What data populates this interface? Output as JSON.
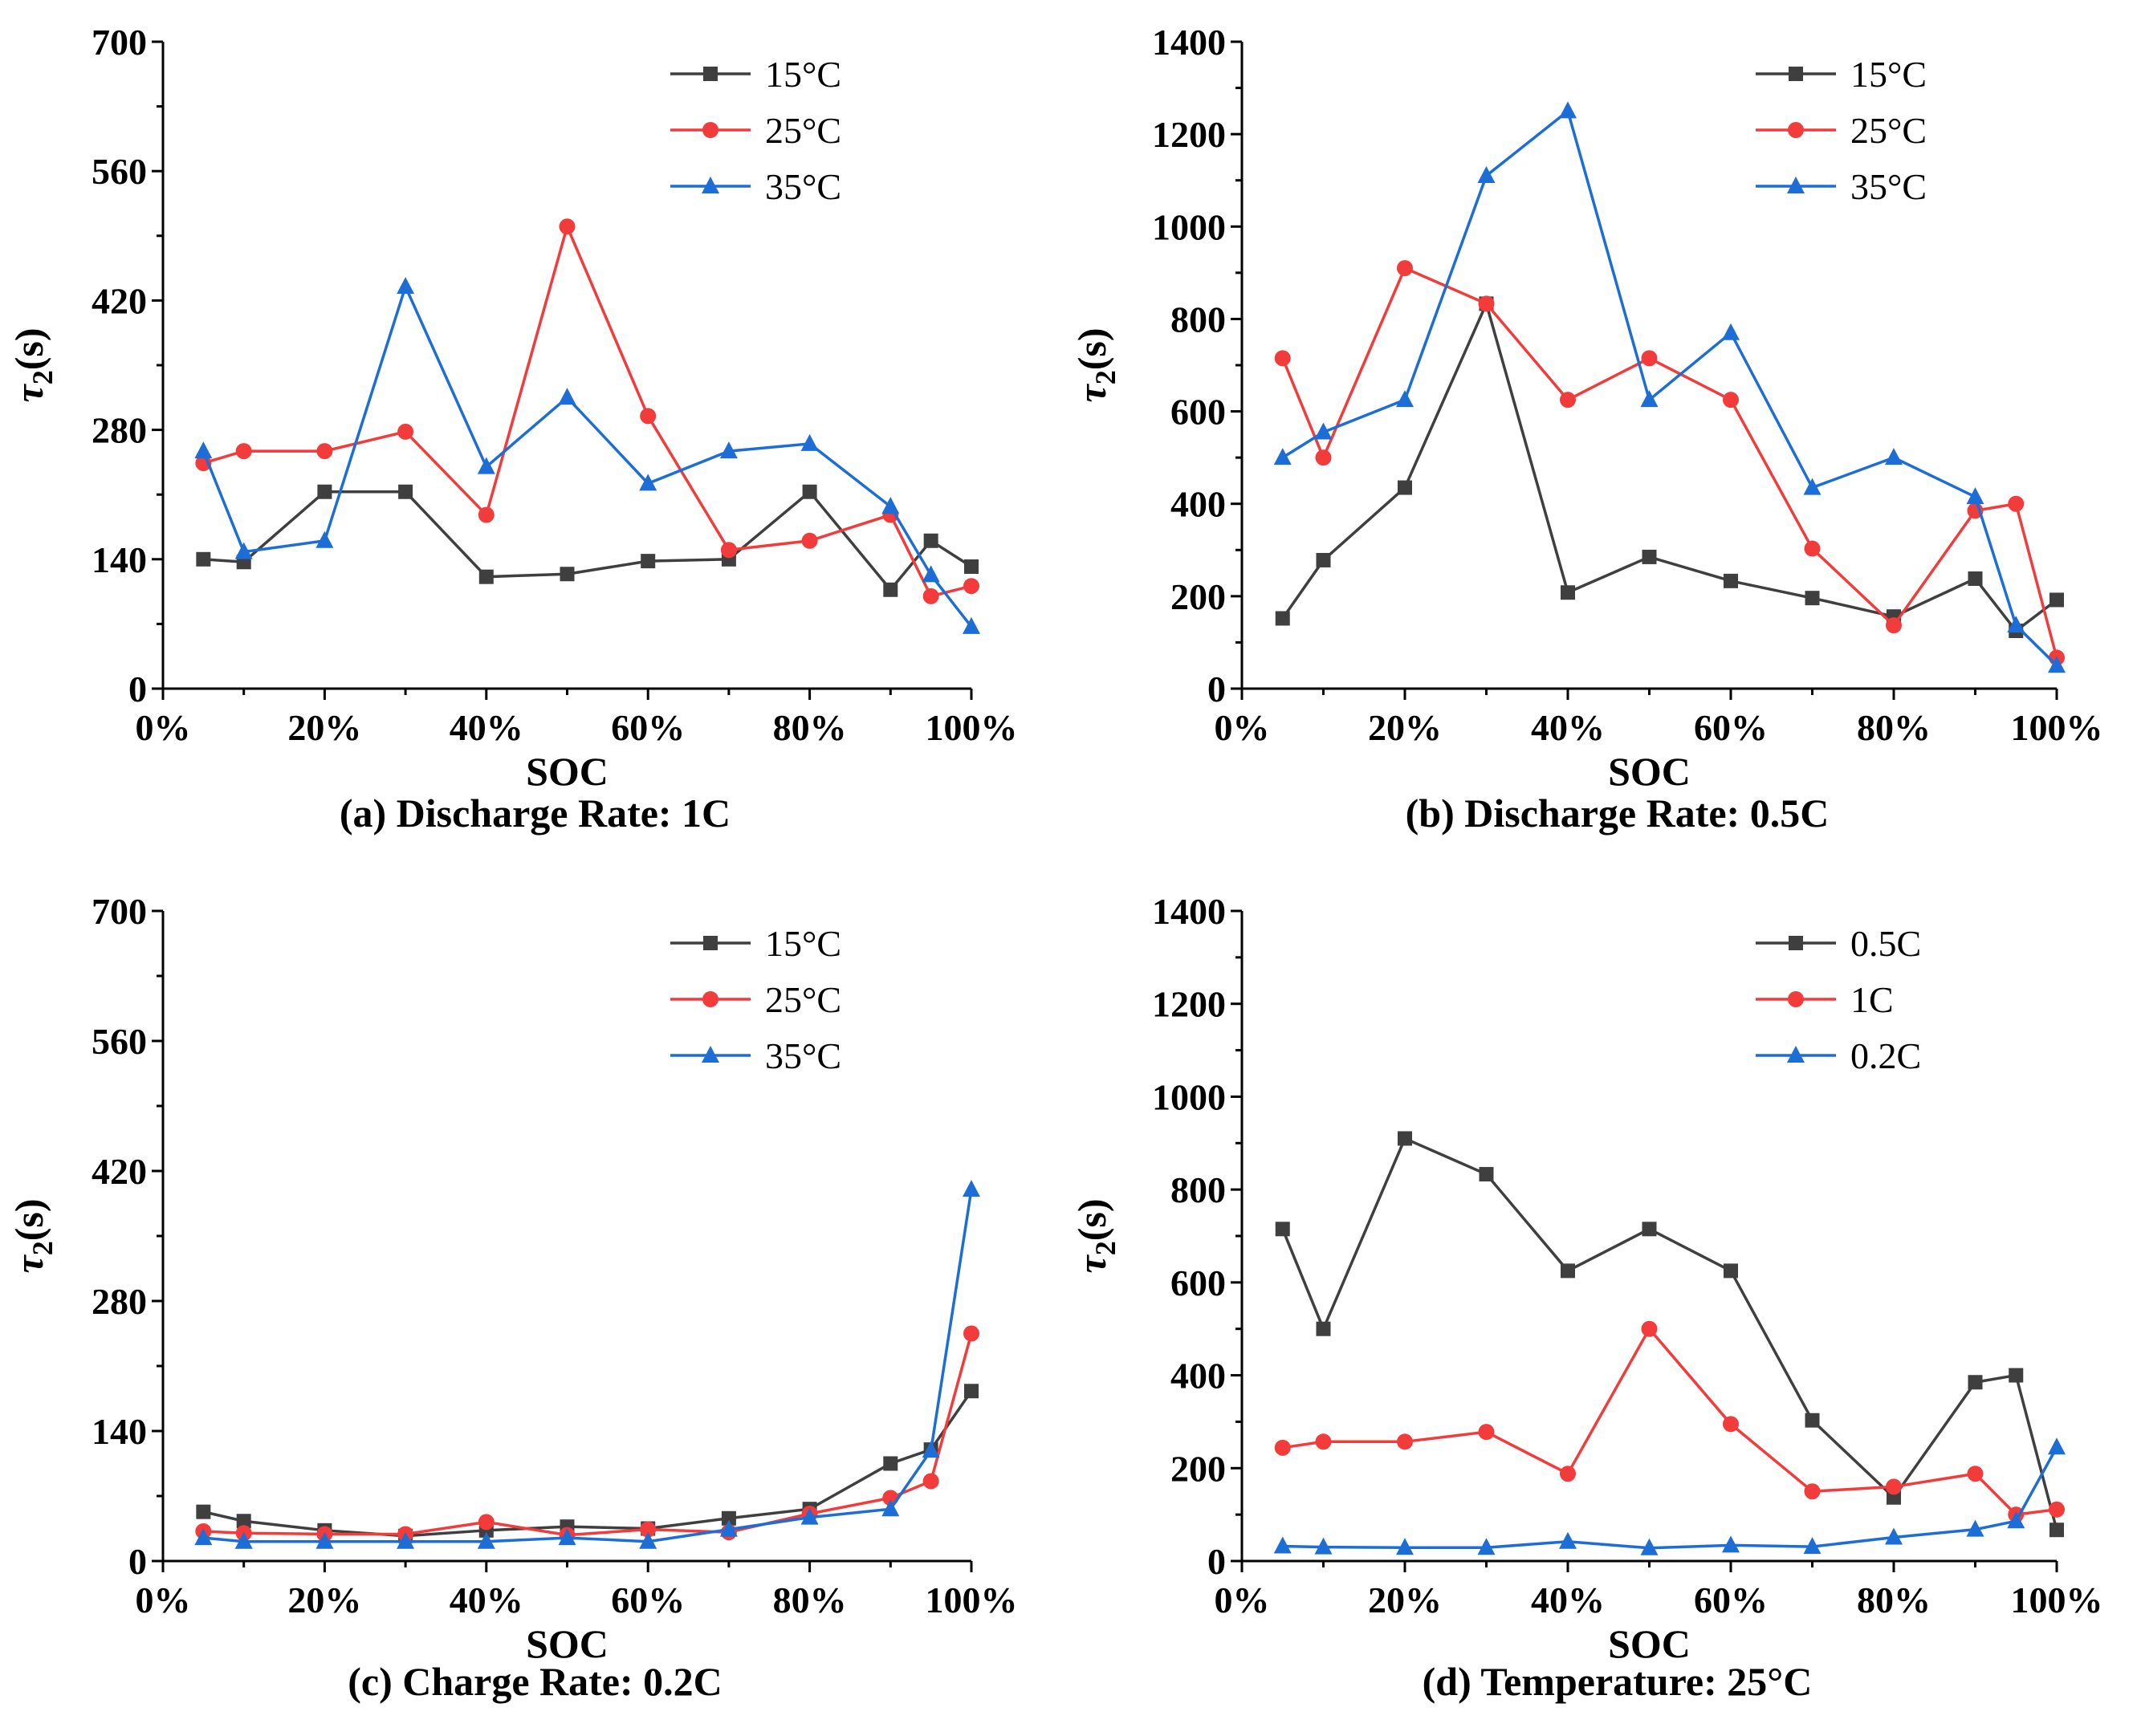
{
  "figure": {
    "background": "#ffffff"
  },
  "chart_data": [
    {
      "type": "line",
      "caption": "(a) Discharge Rate: 1C",
      "xlabel": "SOC",
      "ylabel_main": "τ",
      "ylabel_sub": "2",
      "ylabel_unit": "(s)",
      "xlim": [
        0,
        100
      ],
      "ylim": [
        0,
        700
      ],
      "x_ticks": [
        0,
        20,
        40,
        60,
        80,
        100
      ],
      "x_tick_labels": [
        "0%",
        "20%",
        "40%",
        "60%",
        "80%",
        "100%"
      ],
      "y_ticks": [
        0,
        140,
        280,
        420,
        560,
        700
      ],
      "y_tick_labels": [
        "0",
        "140",
        "280",
        "420",
        "560",
        "700"
      ],
      "grid": false,
      "legend_position": "top-right",
      "x": [
        5,
        10,
        20,
        30,
        40,
        50,
        60,
        70,
        80,
        90,
        95,
        100
      ],
      "series": [
        {
          "name": "15°C",
          "color": "#3f3f3f",
          "marker": "square",
          "values": [
            140,
            137,
            213,
            213,
            121,
            124,
            138,
            140,
            213,
            107,
            160,
            132
          ]
        },
        {
          "name": "25°C",
          "color": "#f23b3b",
          "marker": "circle",
          "values": [
            244,
            257,
            257,
            278,
            188,
            500,
            295,
            150,
            160,
            188,
            100,
            111
          ]
        },
        {
          "name": "35°C",
          "color": "#1c6ed6",
          "marker": "triangle",
          "values": [
            257,
            148,
            160,
            435,
            240,
            315,
            222,
            257,
            265,
            197,
            123,
            67
          ]
        }
      ]
    },
    {
      "type": "line",
      "caption": "(b) Discharge Rate: 0.5C",
      "xlabel": "SOC",
      "ylabel_main": "τ",
      "ylabel_sub": "2",
      "ylabel_unit": "(s)",
      "xlim": [
        0,
        100
      ],
      "ylim": [
        0,
        1400
      ],
      "x_ticks": [
        0,
        20,
        40,
        60,
        80,
        100
      ],
      "x_tick_labels": [
        "0%",
        "20%",
        "40%",
        "60%",
        "80%",
        "100%"
      ],
      "y_ticks": [
        0,
        200,
        400,
        600,
        800,
        1000,
        1200,
        1400
      ],
      "y_tick_labels": [
        "0",
        "200",
        "400",
        "600",
        "800",
        "1000",
        "1200",
        "1400"
      ],
      "grid": false,
      "legend_position": "top-right",
      "x": [
        5,
        10,
        20,
        30,
        40,
        50,
        60,
        70,
        80,
        90,
        95,
        100
      ],
      "series": [
        {
          "name": "15°C",
          "color": "#3f3f3f",
          "marker": "square",
          "values": [
            152,
            278,
            435,
            833,
            208,
            285,
            233,
            196,
            156,
            238,
            125,
            192
          ]
        },
        {
          "name": "25°C",
          "color": "#f23b3b",
          "marker": "circle",
          "values": [
            715,
            500,
            910,
            833,
            625,
            715,
            625,
            303,
            137,
            385,
            400,
            67
          ]
        },
        {
          "name": "35°C",
          "color": "#1c6ed6",
          "marker": "triangle",
          "values": [
            500,
            555,
            625,
            1110,
            1250,
            625,
            770,
            435,
            500,
            415,
            137,
            50
          ]
        }
      ]
    },
    {
      "type": "line",
      "caption": "(c) Charge Rate: 0.2C",
      "xlabel": "SOC",
      "ylabel_main": "τ",
      "ylabel_sub": "2",
      "ylabel_unit": "(s)",
      "xlim": [
        0,
        100
      ],
      "ylim": [
        0,
        700
      ],
      "x_ticks": [
        0,
        20,
        40,
        60,
        80,
        100
      ],
      "x_tick_labels": [
        "0%",
        "20%",
        "40%",
        "60%",
        "80%",
        "100%"
      ],
      "y_ticks": [
        0,
        140,
        280,
        420,
        560,
        700
      ],
      "y_tick_labels": [
        "0",
        "140",
        "280",
        "420",
        "560",
        "700"
      ],
      "grid": false,
      "legend_position": "top-right",
      "x": [
        5,
        10,
        20,
        30,
        40,
        50,
        60,
        70,
        80,
        90,
        95,
        100
      ],
      "series": [
        {
          "name": "15°C",
          "color": "#3f3f3f",
          "marker": "square",
          "values": [
            53,
            43,
            33,
            27,
            33,
            37,
            35,
            46,
            56,
            105,
            120,
            183
          ]
        },
        {
          "name": "25°C",
          "color": "#f23b3b",
          "marker": "circle",
          "values": [
            32,
            30,
            29,
            29,
            42,
            28,
            34,
            31,
            51,
            68,
            86,
            245
          ]
        },
        {
          "name": "35°C",
          "color": "#1c6ed6",
          "marker": "triangle",
          "values": [
            25,
            21,
            21,
            21,
            21,
            25,
            21,
            34,
            47,
            56,
            119,
            400
          ]
        }
      ]
    },
    {
      "type": "line",
      "caption": "(d) Temperature: 25°C",
      "xlabel": "SOC",
      "ylabel_main": "τ",
      "ylabel_sub": "2",
      "ylabel_unit": "(s)",
      "xlim": [
        0,
        100
      ],
      "ylim": [
        0,
        1400
      ],
      "x_ticks": [
        0,
        20,
        40,
        60,
        80,
        100
      ],
      "x_tick_labels": [
        "0%",
        "20%",
        "40%",
        "60%",
        "80%",
        "100%"
      ],
      "y_ticks": [
        0,
        200,
        400,
        600,
        800,
        1000,
        1200,
        1400
      ],
      "y_tick_labels": [
        "0",
        "200",
        "400",
        "600",
        "800",
        "1000",
        "1200",
        "1400"
      ],
      "grid": false,
      "legend_position": "top-right",
      "x": [
        5,
        10,
        20,
        30,
        40,
        50,
        60,
        70,
        80,
        90,
        95,
        100
      ],
      "series": [
        {
          "name": "0.5C",
          "color": "#3f3f3f",
          "marker": "square",
          "values": [
            715,
            500,
            910,
            833,
            625,
            715,
            625,
            303,
            137,
            385,
            400,
            67
          ]
        },
        {
          "name": "1C",
          "color": "#f23b3b",
          "marker": "circle",
          "values": [
            244,
            257,
            257,
            278,
            188,
            500,
            295,
            150,
            160,
            188,
            100,
            111
          ]
        },
        {
          "name": "0.2C",
          "color": "#1c6ed6",
          "marker": "triangle",
          "values": [
            32,
            30,
            29,
            29,
            42,
            28,
            34,
            31,
            51,
            68,
            86,
            245
          ]
        }
      ]
    }
  ]
}
